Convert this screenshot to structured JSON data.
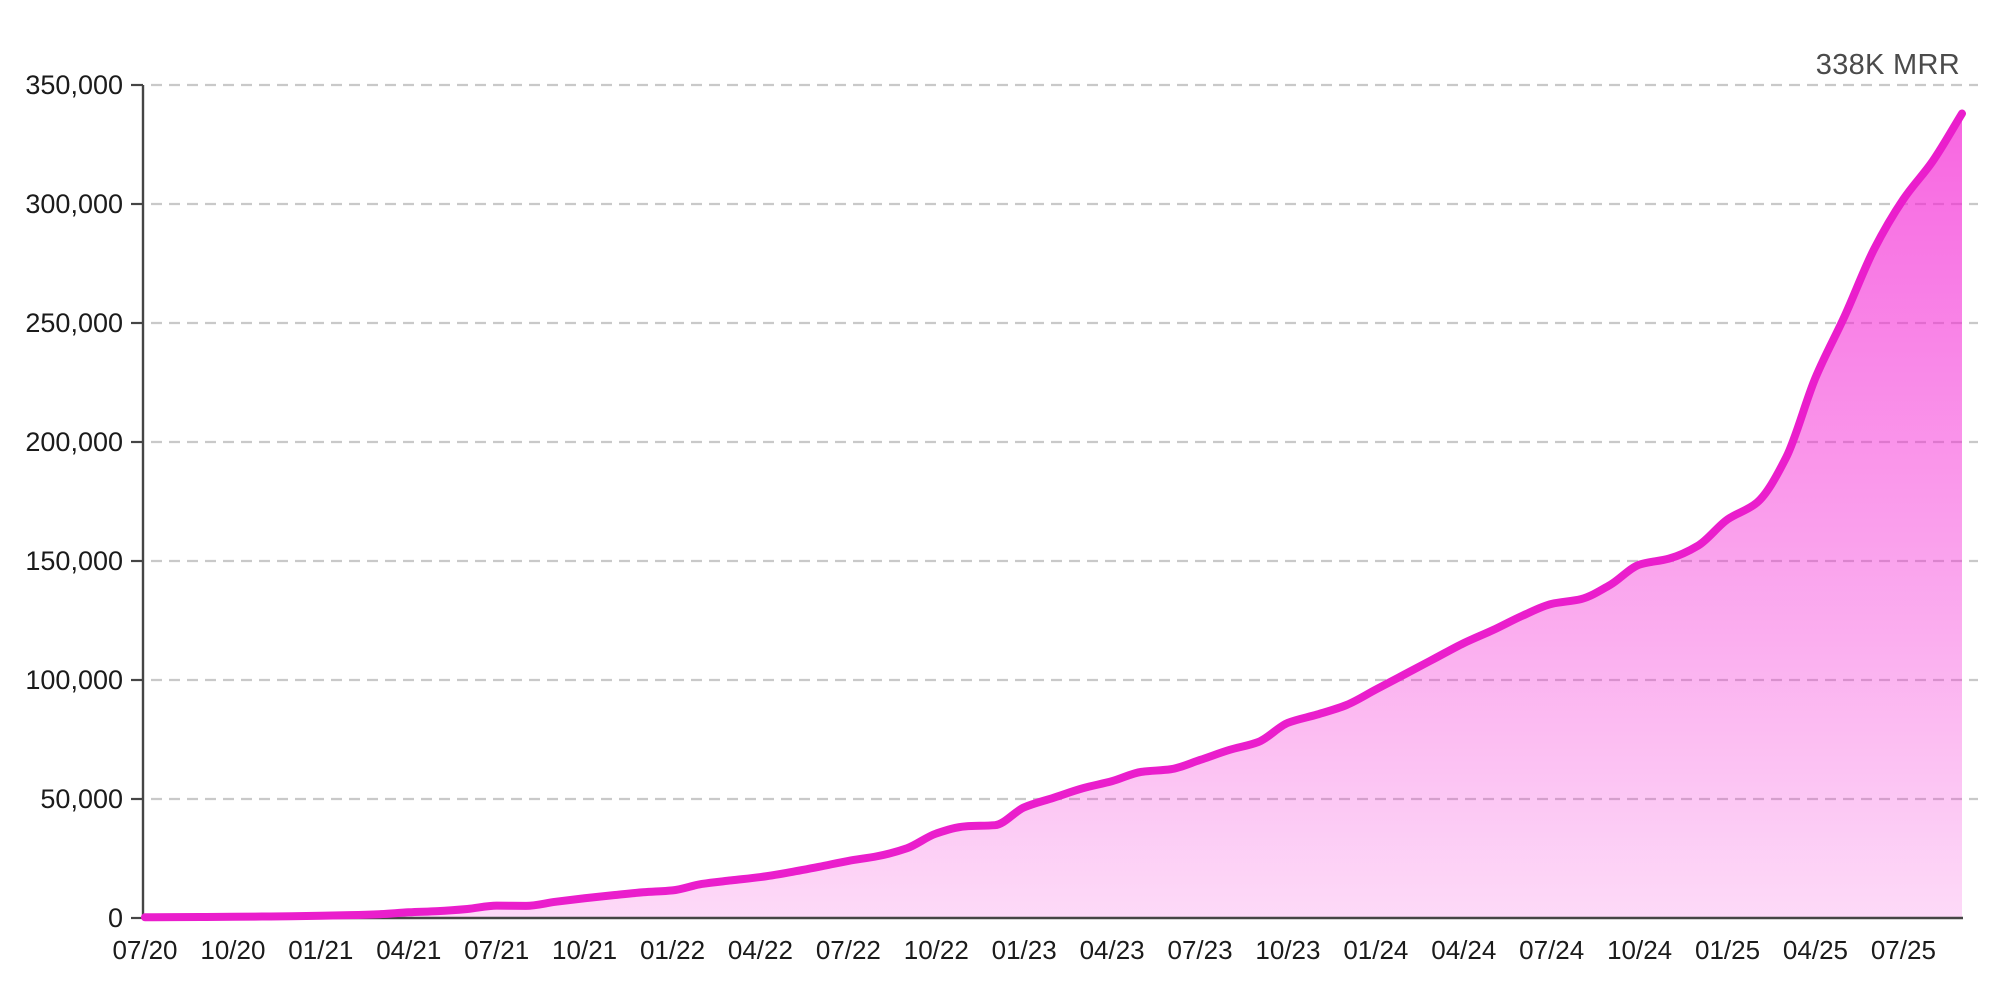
{
  "chart_data": {
    "type": "area",
    "title": "338K MRR",
    "series_name": "MRR",
    "x": [
      "2020-07",
      "2020-08",
      "2020-09",
      "2020-10",
      "2020-11",
      "2020-12",
      "2021-01",
      "2021-02",
      "2021-03",
      "2021-04",
      "2021-05",
      "2021-06",
      "2021-07",
      "2021-08",
      "2021-09",
      "2021-10",
      "2021-11",
      "2021-12",
      "2022-01",
      "2022-02",
      "2022-03",
      "2022-04",
      "2022-05",
      "2022-06",
      "2022-07",
      "2022-08",
      "2022-09",
      "2022-10",
      "2022-11",
      "2022-12",
      "2023-01",
      "2023-02",
      "2023-03",
      "2023-04",
      "2023-05",
      "2023-06",
      "2023-07",
      "2023-08",
      "2023-09",
      "2023-10",
      "2023-11",
      "2023-12",
      "2024-01",
      "2024-02",
      "2024-03",
      "2024-04",
      "2024-05",
      "2024-06",
      "2024-07",
      "2024-08",
      "2024-09",
      "2024-10",
      "2024-11",
      "2024-12",
      "2025-01",
      "2025-02",
      "2025-03",
      "2025-04",
      "2025-05",
      "2025-06",
      "2025-07",
      "2025-08",
      "2025-09"
    ],
    "values": [
      300,
      350,
      420,
      500,
      620,
      750,
      950,
      1200,
      1600,
      2400,
      2900,
      3800,
      5200,
      5100,
      6800,
      8300,
      9600,
      10800,
      11600,
      14300,
      15800,
      17200,
      19200,
      21500,
      24000,
      26000,
      29300,
      35500,
      38500,
      39000,
      46500,
      50500,
      54500,
      57500,
      61400,
      62500,
      66400,
      70600,
      74000,
      82000,
      85500,
      89500,
      96000,
      102500,
      109000,
      115500,
      121000,
      127000,
      132000,
      134000,
      140000,
      148500,
      151000,
      156500,
      167500,
      174500,
      193500,
      227000,
      253000,
      281000,
      302000,
      318000,
      338000
    ],
    "x_tick_labels": [
      "07/20",
      "10/20",
      "01/21",
      "04/21",
      "07/21",
      "10/21",
      "01/22",
      "04/22",
      "07/22",
      "10/22",
      "01/23",
      "04/23",
      "07/23",
      "10/23",
      "01/24",
      "04/24",
      "07/24",
      "10/24",
      "01/25",
      "04/25",
      "07/25"
    ],
    "x_tick_every": 3,
    "y_ticks": [
      0,
      50000,
      100000,
      150000,
      200000,
      250000,
      300000,
      350000
    ],
    "y_tick_labels": [
      "0",
      "50,000",
      "100,000",
      "150,000",
      "200,000",
      "250,000",
      "300,000",
      "350,000"
    ],
    "ylim": [
      0,
      350000
    ],
    "grid": {
      "horizontal": true,
      "style": "dashed",
      "color": "#C9C9C9"
    },
    "legend": "none",
    "colors": {
      "line": "#EA1ECC",
      "fill_base": "#F425D4",
      "axis": "#454545",
      "tick_text": "#1B1B1B",
      "title_text": "#4B4B4B"
    },
    "fill_gradient": [
      {
        "offset": 0.0,
        "opacity": 0.72
      },
      {
        "offset": 0.65,
        "opacity": 0.38
      },
      {
        "offset": 1.0,
        "opacity": 0.17
      }
    ]
  }
}
